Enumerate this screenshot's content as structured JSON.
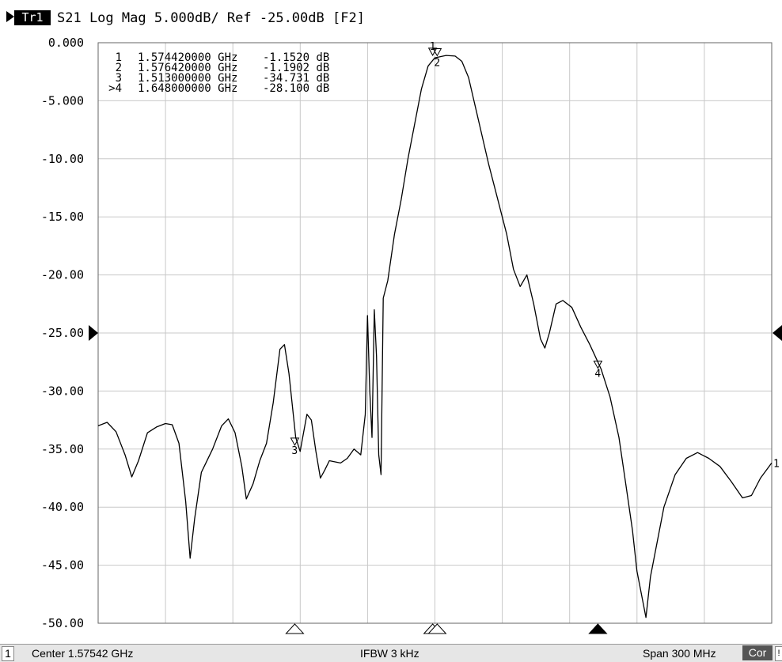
{
  "header": {
    "trace_label": "Tr1",
    "title_line": "S21 Log Mag 5.000dB/ Ref -25.00dB [F2]"
  },
  "chart_data": {
    "type": "line",
    "title": "S21 Log Mag 5.000dB/ Ref -25.00dB [F2]",
    "xlabel": "",
    "ylabel": "",
    "x_unit": "GHz",
    "xlim": [
      1.42542,
      1.72542
    ],
    "ylim": [
      -50,
      0
    ],
    "y_ticks": [
      "0.000",
      "-5.000",
      "-10.00",
      "-15.00",
      "-20.00",
      "-25.00",
      "-30.00",
      "-35.00",
      "-40.00",
      "-45.00",
      "-50.00"
    ],
    "grid": true,
    "reference_level_label": "-25.00",
    "marker_table": [
      {
        "id": "1",
        "freq": "1.574420000 GHz",
        "value": "-1.1520 dB"
      },
      {
        "id": "2",
        "freq": "1.576420000 GHz",
        "value": "-1.1902 dB"
      },
      {
        "id": "3",
        "freq": "1.513000000 GHz",
        "value": "-34.731 dB"
      },
      {
        "id": ">4",
        "freq": "1.648000000 GHz",
        "value": "-28.100 dB"
      }
    ],
    "markers": [
      {
        "label": "1",
        "x": 1.57442,
        "y": -1.152,
        "active": false
      },
      {
        "label": "2",
        "x": 1.57642,
        "y": -1.1902,
        "active": false
      },
      {
        "label": "3",
        "x": 1.513,
        "y": -34.731,
        "active": false
      },
      {
        "label": "4",
        "x": 1.648,
        "y": -28.1,
        "active": true
      }
    ],
    "series": [
      {
        "points": [
          [
            1.4254,
            -33.0
          ],
          [
            1.4294,
            -32.7
          ],
          [
            1.4334,
            -33.5
          ],
          [
            1.4374,
            -35.5
          ],
          [
            1.4404,
            -37.4
          ],
          [
            1.4434,
            -36.0
          ],
          [
            1.4474,
            -33.6
          ],
          [
            1.4514,
            -33.1
          ],
          [
            1.4554,
            -32.8
          ],
          [
            1.4584,
            -32.9
          ],
          [
            1.4614,
            -34.5
          ],
          [
            1.4644,
            -39.5
          ],
          [
            1.4664,
            -44.4
          ],
          [
            1.4684,
            -41.0
          ],
          [
            1.4714,
            -37.0
          ],
          [
            1.4764,
            -35.0
          ],
          [
            1.4804,
            -33.0
          ],
          [
            1.4834,
            -32.4
          ],
          [
            1.4864,
            -33.6
          ],
          [
            1.4894,
            -36.5
          ],
          [
            1.4914,
            -39.3
          ],
          [
            1.4944,
            -38.0
          ],
          [
            1.4974,
            -36.0
          ],
          [
            1.5004,
            -34.5
          ],
          [
            1.5034,
            -31.0
          ],
          [
            1.5064,
            -26.4
          ],
          [
            1.5084,
            -26.0
          ],
          [
            1.5104,
            -28.5
          ],
          [
            1.5134,
            -34.0
          ],
          [
            1.5154,
            -35.2
          ],
          [
            1.5184,
            -32.0
          ],
          [
            1.5204,
            -32.5
          ],
          [
            1.5224,
            -35.2
          ],
          [
            1.5244,
            -37.5
          ],
          [
            1.5264,
            -36.8
          ],
          [
            1.5284,
            -36.0
          ],
          [
            1.5334,
            -36.2
          ],
          [
            1.5364,
            -35.8
          ],
          [
            1.5394,
            -35.0
          ],
          [
            1.5424,
            -35.5
          ],
          [
            1.5444,
            -32.0
          ],
          [
            1.5454,
            -23.5
          ],
          [
            1.5464,
            -30.0
          ],
          [
            1.5474,
            -34.0
          ],
          [
            1.5484,
            -23.0
          ],
          [
            1.5494,
            -27.0
          ],
          [
            1.5504,
            -35.5
          ],
          [
            1.5514,
            -37.2
          ],
          [
            1.5524,
            -22.0
          ],
          [
            1.5544,
            -20.5
          ],
          [
            1.5574,
            -16.5
          ],
          [
            1.5604,
            -13.5
          ],
          [
            1.5634,
            -10.0
          ],
          [
            1.5664,
            -7.0
          ],
          [
            1.5694,
            -4.0
          ],
          [
            1.5724,
            -2.0
          ],
          [
            1.5754,
            -1.3
          ],
          [
            1.5804,
            -1.1
          ],
          [
            1.5844,
            -1.15
          ],
          [
            1.5874,
            -1.6
          ],
          [
            1.5904,
            -3.0
          ],
          [
            1.5934,
            -5.5
          ],
          [
            1.5964,
            -8.0
          ],
          [
            1.5994,
            -10.5
          ],
          [
            1.6034,
            -13.5
          ],
          [
            1.6074,
            -16.5
          ],
          [
            1.6104,
            -19.5
          ],
          [
            1.6134,
            -21.0
          ],
          [
            1.6164,
            -20.0
          ],
          [
            1.6194,
            -22.5
          ],
          [
            1.6224,
            -25.5
          ],
          [
            1.6244,
            -26.3
          ],
          [
            1.6264,
            -25.0
          ],
          [
            1.6294,
            -22.5
          ],
          [
            1.6324,
            -22.2
          ],
          [
            1.6364,
            -22.8
          ],
          [
            1.6404,
            -24.5
          ],
          [
            1.6444,
            -26.0
          ],
          [
            1.6494,
            -28.1
          ],
          [
            1.6534,
            -30.5
          ],
          [
            1.6574,
            -34.0
          ],
          [
            1.6604,
            -38.0
          ],
          [
            1.6634,
            -42.0
          ],
          [
            1.6654,
            -45.5
          ],
          [
            1.6674,
            -47.5
          ],
          [
            1.6694,
            -49.5
          ],
          [
            1.6714,
            -46.0
          ],
          [
            1.6744,
            -43.0
          ],
          [
            1.6774,
            -40.0
          ],
          [
            1.6824,
            -37.2
          ],
          [
            1.6874,
            -35.8
          ],
          [
            1.6924,
            -35.3
          ],
          [
            1.6974,
            -35.8
          ],
          [
            1.7024,
            -36.5
          ],
          [
            1.7074,
            -37.8
          ],
          [
            1.7124,
            -39.2
          ],
          [
            1.7164,
            -39.0
          ],
          [
            1.7204,
            -37.5
          ],
          [
            1.7254,
            -36.2
          ]
        ]
      }
    ]
  },
  "status": {
    "channel": "1",
    "center": "Center 1.57542 GHz",
    "ifbw": "IFBW 3 kHz",
    "span": "Span 300 MHz",
    "cor": "Cor",
    "tail": "!"
  },
  "colors": {
    "trace": "#000000",
    "grid": "#c8c8c8",
    "background": "#ffffff",
    "status_bar": "#e6e6e6"
  }
}
